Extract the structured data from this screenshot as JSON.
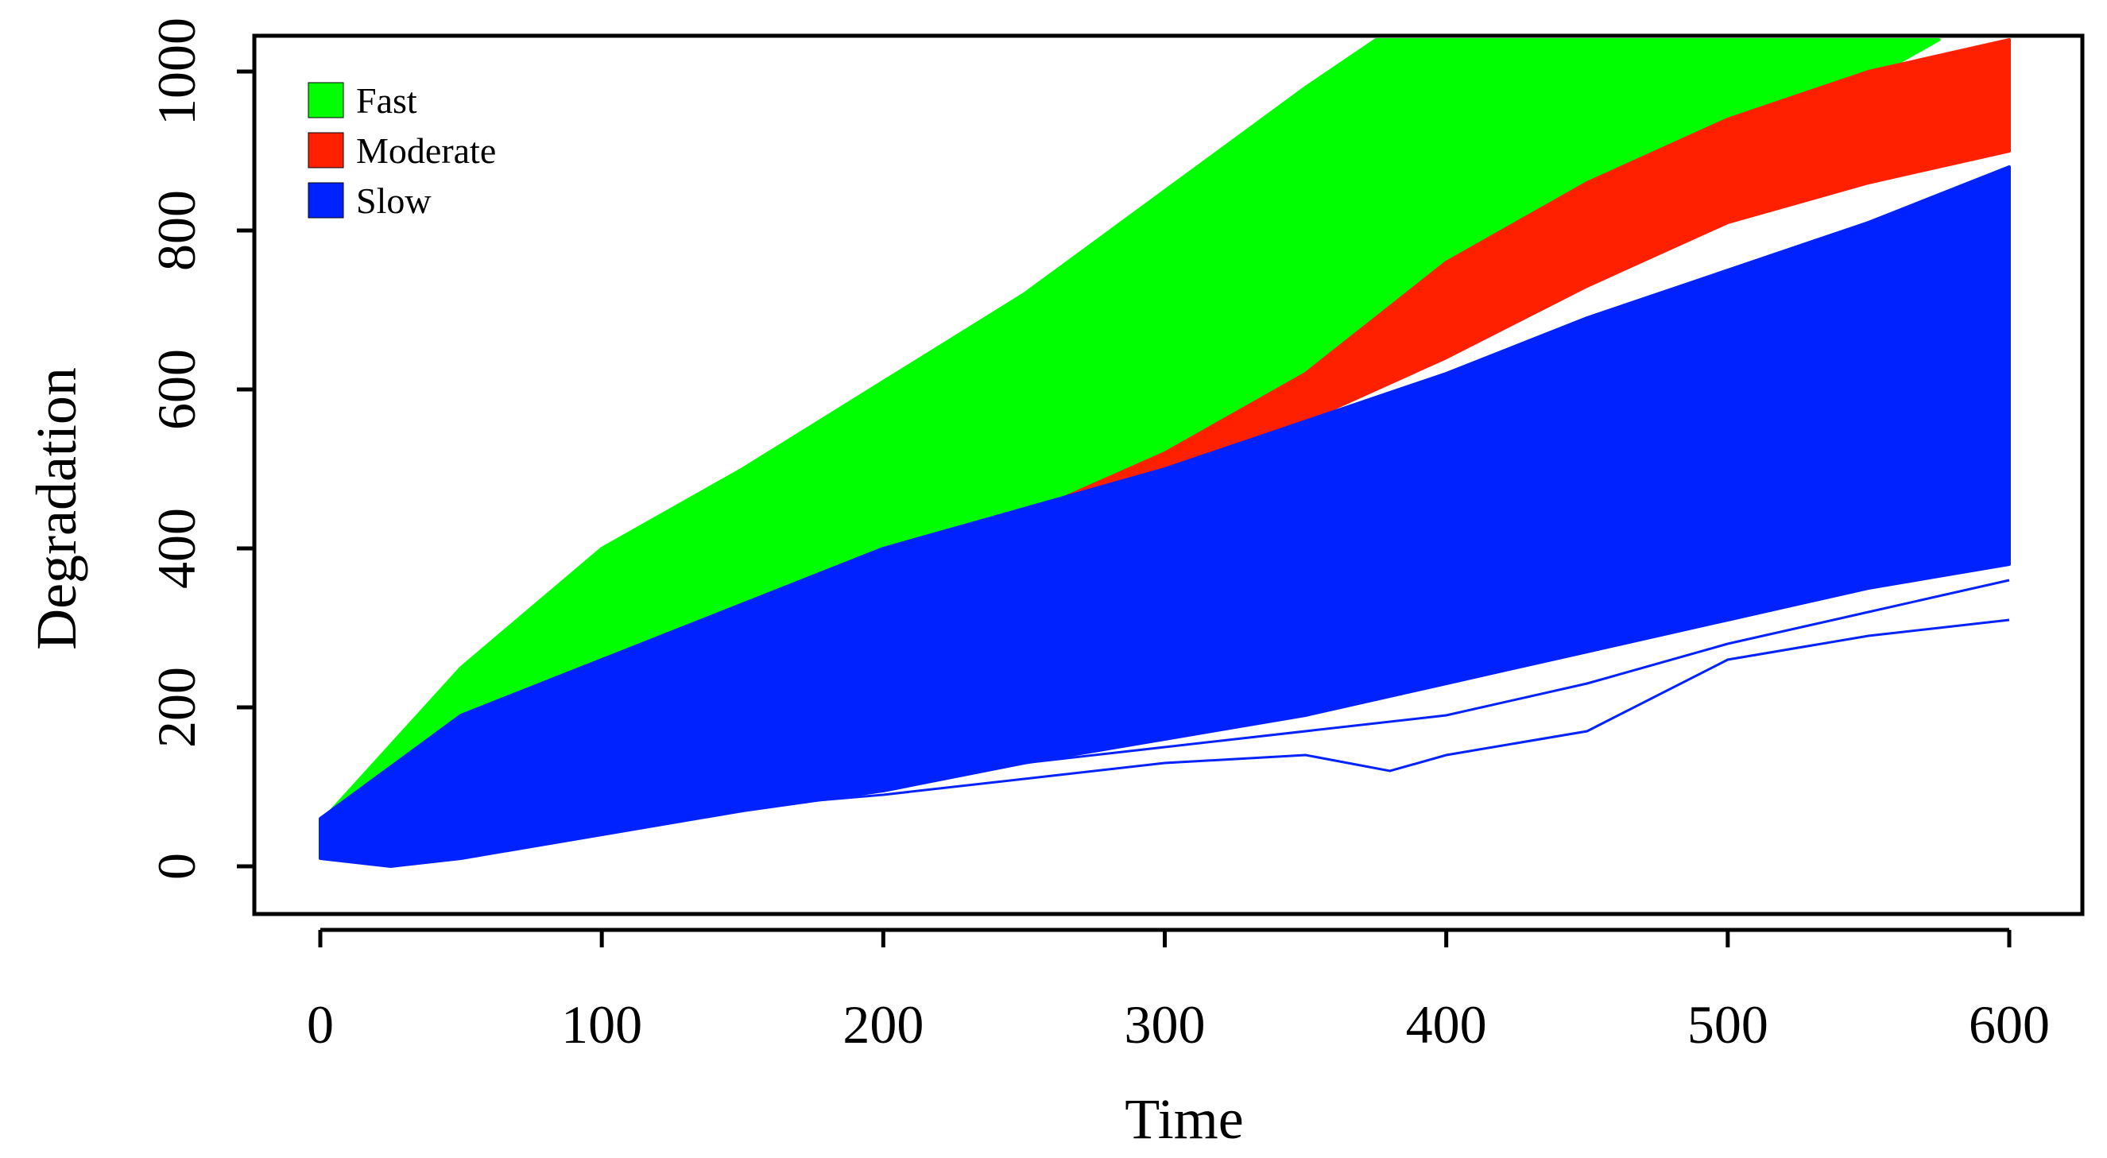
{
  "chart_data": {
    "type": "line",
    "title": "",
    "xlabel": "Time",
    "ylabel": "Degradation",
    "xlim": [
      0,
      600
    ],
    "ylim": [
      0,
      1040
    ],
    "x_ticks": [
      0,
      100,
      200,
      300,
      400,
      500,
      600
    ],
    "y_ticks": [
      0,
      200,
      400,
      600,
      800,
      1000
    ],
    "grid": false,
    "legend": {
      "placement": "top-left",
      "entries": [
        {
          "label": "Fast",
          "color": "#00ff00"
        },
        {
          "label": "Moderate",
          "color": "#ff2000"
        },
        {
          "label": "Slow",
          "color": "#0022ff"
        }
      ]
    },
    "series": [
      {
        "name": "Fast",
        "color": "#00ff00",
        "band_upper": [
          [
            0,
            55
          ],
          [
            50,
            250
          ],
          [
            100,
            400
          ],
          [
            150,
            500
          ],
          [
            200,
            610
          ],
          [
            250,
            720
          ],
          [
            300,
            850
          ],
          [
            350,
            980
          ],
          [
            375,
            1040
          ]
        ],
        "band_lower": [
          [
            0,
            35
          ],
          [
            50,
            150
          ],
          [
            100,
            230
          ],
          [
            150,
            310
          ],
          [
            200,
            380
          ],
          [
            250,
            440
          ],
          [
            300,
            500
          ],
          [
            350,
            560
          ],
          [
            400,
            650
          ],
          [
            450,
            780
          ],
          [
            500,
            900
          ],
          [
            550,
            990
          ],
          [
            575,
            1040
          ]
        ]
      },
      {
        "name": "Moderate",
        "color": "#ff2000",
        "band_upper": [
          [
            0,
            50
          ],
          [
            300,
            520
          ],
          [
            350,
            620
          ],
          [
            400,
            760
          ],
          [
            450,
            860
          ],
          [
            500,
            940
          ],
          [
            550,
            1000
          ],
          [
            600,
            1040
          ]
        ],
        "band_lower": [
          [
            0,
            35
          ],
          [
            300,
            480
          ],
          [
            350,
            560
          ],
          [
            400,
            640
          ],
          [
            450,
            730
          ],
          [
            500,
            810
          ],
          [
            550,
            860
          ],
          [
            600,
            900
          ]
        ]
      },
      {
        "name": "Slow",
        "color": "#0022ff",
        "band_upper": [
          [
            0,
            60
          ],
          [
            50,
            190
          ],
          [
            100,
            260
          ],
          [
            150,
            330
          ],
          [
            200,
            400
          ],
          [
            250,
            450
          ],
          [
            300,
            500
          ],
          [
            350,
            560
          ],
          [
            400,
            620
          ],
          [
            450,
            690
          ],
          [
            500,
            750
          ],
          [
            550,
            810
          ],
          [
            600,
            880
          ]
        ],
        "band_lower": [
          [
            0,
            10
          ],
          [
            25,
            0
          ],
          [
            50,
            10
          ],
          [
            100,
            40
          ],
          [
            150,
            70
          ],
          [
            200,
            95
          ],
          [
            250,
            130
          ],
          [
            300,
            160
          ],
          [
            350,
            190
          ],
          [
            400,
            230
          ],
          [
            450,
            270
          ],
          [
            500,
            310
          ],
          [
            550,
            350
          ],
          [
            600,
            380
          ]
        ],
        "outliers": [
          [
            [
              0,
              20
            ],
            [
              100,
              60
            ],
            [
              200,
              90
            ],
            [
              300,
              130
            ],
            [
              350,
              140
            ],
            [
              380,
              120
            ],
            [
              400,
              140
            ],
            [
              450,
              170
            ],
            [
              500,
              260
            ],
            [
              550,
              290
            ],
            [
              600,
              310
            ]
          ],
          [
            [
              0,
              25
            ],
            [
              100,
              70
            ],
            [
              200,
              110
            ],
            [
              300,
              150
            ],
            [
              400,
              190
            ],
            [
              450,
              230
            ],
            [
              500,
              280
            ],
            [
              550,
              320
            ],
            [
              600,
              360
            ]
          ]
        ]
      }
    ]
  }
}
